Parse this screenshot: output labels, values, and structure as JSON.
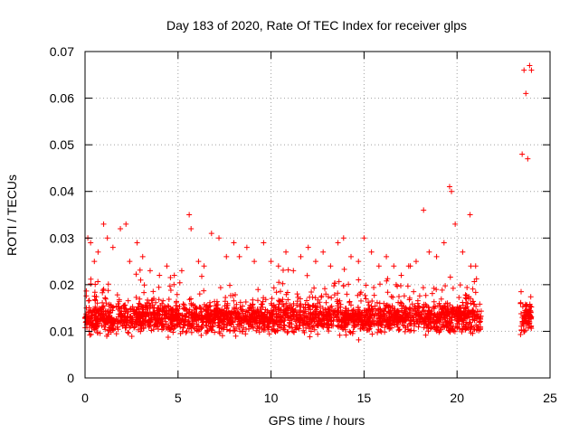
{
  "chart_data": {
    "type": "scatter",
    "title": "Day 183 of 2020, Rate Of TEC Index for receiver glps",
    "xlabel": "GPS time / hours",
    "ylabel": "ROTI / TECUs",
    "xlim": [
      0,
      25
    ],
    "ylim": [
      0,
      0.07
    ],
    "x_ticks": [
      "0",
      "5",
      "10",
      "15",
      "20",
      "25"
    ],
    "y_ticks": [
      "0",
      "0.01",
      "0.02",
      "0.03",
      "0.04",
      "0.05",
      "0.06",
      "0.07"
    ],
    "grid": true,
    "legend": "none",
    "marker": "plus",
    "color": "#ff0000",
    "x_gap": [
      21.3,
      23.4
    ],
    "series": [
      {
        "x": [
          0.15,
          0.3,
          0.5,
          0.7,
          1.0,
          1.2,
          1.5,
          1.9,
          2.2,
          2.4,
          2.8,
          3.1,
          3.5,
          4.0,
          4.4,
          4.8,
          5.2,
          5.6,
          5.7,
          6.1,
          6.4,
          6.8,
          7.2,
          7.6,
          8.0,
          8.3,
          8.7,
          9.1,
          9.6,
          10.0,
          10.4,
          10.8,
          11.2,
          11.6,
          12.0,
          12.4,
          12.8,
          13.2,
          13.6,
          13.9,
          14.3,
          14.7,
          15.0,
          15.4,
          15.8,
          16.2,
          16.6,
          17.0,
          17.4,
          17.8,
          18.2,
          18.5,
          18.9,
          19.3,
          19.6,
          19.7,
          19.9,
          20.3,
          20.7,
          21.0,
          23.5,
          23.6,
          23.7,
          23.8,
          23.9,
          24.0
        ],
        "y": [
          0.03,
          0.029,
          0.025,
          0.027,
          0.033,
          0.03,
          0.028,
          0.032,
          0.033,
          0.025,
          0.029,
          0.026,
          0.023,
          0.022,
          0.024,
          0.022,
          0.023,
          0.035,
          0.032,
          0.025,
          0.024,
          0.031,
          0.03,
          0.026,
          0.029,
          0.026,
          0.028,
          0.025,
          0.029,
          0.025,
          0.024,
          0.027,
          0.023,
          0.026,
          0.028,
          0.025,
          0.027,
          0.024,
          0.029,
          0.03,
          0.026,
          0.025,
          0.03,
          0.027,
          0.024,
          0.026,
          0.024,
          0.022,
          0.024,
          0.025,
          0.036,
          0.027,
          0.026,
          0.029,
          0.041,
          0.04,
          0.033,
          0.027,
          0.035,
          0.024,
          0.048,
          0.066,
          0.061,
          0.047,
          0.067,
          0.066
        ]
      }
    ]
  }
}
